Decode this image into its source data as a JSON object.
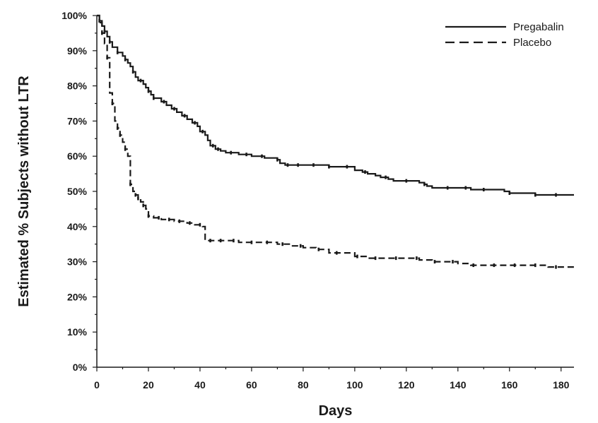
{
  "chart_data": {
    "type": "line",
    "title": "",
    "xlabel": "Days",
    "ylabel": "Estimated % Subjects without LTR",
    "xlim": [
      0,
      185
    ],
    "ylim": [
      0,
      100
    ],
    "x_ticks": [
      0,
      20,
      40,
      60,
      80,
      100,
      120,
      140,
      160,
      180
    ],
    "y_ticks": [
      0,
      10,
      20,
      30,
      40,
      50,
      60,
      70,
      80,
      90,
      100
    ],
    "x_tick_labels": [
      "0",
      "20",
      "40",
      "60",
      "80",
      "100",
      "120",
      "140",
      "160",
      "180"
    ],
    "y_tick_labels": [
      "0%",
      "10%",
      "20%",
      "30%",
      "40%",
      "50%",
      "60%",
      "70%",
      "80%",
      "90%",
      "100%"
    ],
    "grid": false,
    "legend_position": "top-right",
    "series": [
      {
        "name": "Pregabalin",
        "style": "solid",
        "x": [
          0,
          1,
          2,
          3,
          4,
          5,
          6,
          8,
          10,
          11,
          12,
          13,
          14,
          15,
          16,
          18,
          19,
          20,
          21,
          22,
          25,
          27,
          29,
          31,
          33,
          35,
          37,
          39,
          40,
          42,
          43,
          44,
          46,
          48,
          50,
          55,
          60,
          65,
          70,
          71,
          73,
          75,
          80,
          85,
          90,
          95,
          100,
          103,
          105,
          108,
          110,
          113,
          115,
          120,
          125,
          127,
          128,
          130,
          135,
          140,
          145,
          150,
          155,
          158,
          160,
          163,
          165,
          170,
          175,
          185
        ],
        "y": [
          100,
          98.5,
          97,
          95.5,
          94,
          92.5,
          91,
          89.5,
          88.5,
          87.5,
          86.5,
          85.5,
          84,
          82.5,
          81.5,
          80.5,
          79.5,
          78.5,
          77.5,
          76.5,
          75.5,
          74.5,
          73.5,
          72.5,
          71.5,
          70.5,
          69.5,
          68.5,
          67,
          66,
          64.5,
          63,
          62,
          61.5,
          61,
          60.5,
          60,
          59.5,
          59,
          58,
          57.5,
          57.5,
          57.5,
          57.5,
          57,
          57,
          56,
          55.5,
          55,
          54.5,
          54,
          53.5,
          53,
          53,
          52.5,
          52,
          51.5,
          51,
          51,
          51,
          50.5,
          50.5,
          50.5,
          50,
          49.5,
          49.5,
          49.5,
          49,
          49,
          49
        ],
        "censor_x": [
          1,
          3,
          5,
          8,
          11,
          14,
          17,
          20,
          22,
          26,
          30,
          34,
          38,
          41,
          45,
          47,
          52,
          58,
          64,
          70,
          74,
          78,
          84,
          90,
          97,
          104,
          112,
          120,
          127,
          136,
          143,
          150,
          160,
          170,
          178
        ]
      },
      {
        "name": "Placebo",
        "style": "dashed",
        "x": [
          0,
          1,
          2,
          3,
          4,
          5,
          6,
          7,
          8,
          9,
          10,
          11,
          12,
          13,
          14,
          15,
          16,
          17,
          18,
          19,
          20,
          22,
          25,
          30,
          35,
          38,
          41,
          42,
          45,
          50,
          55,
          60,
          65,
          70,
          75,
          80,
          85,
          90,
          95,
          100,
          105,
          110,
          115,
          120,
          125,
          130,
          135,
          140,
          145,
          150,
          155,
          160,
          165,
          170,
          175,
          180,
          185
        ],
        "y": [
          100,
          98,
          95,
          92,
          88,
          78,
          75,
          70,
          68,
          66,
          64,
          62,
          60,
          52,
          50,
          49,
          48,
          47,
          46,
          45,
          43,
          42.5,
          42,
          41.5,
          41,
          40.5,
          40,
          36,
          36,
          36,
          35.5,
          35.5,
          35.5,
          35,
          34.5,
          34,
          33.5,
          32.5,
          32.5,
          31.5,
          31,
          31,
          31,
          31,
          30.5,
          30,
          30,
          29.5,
          29,
          29,
          29,
          29,
          29,
          29,
          28.5,
          28.5,
          28
        ],
        "censor_x": [
          2,
          4,
          6,
          8,
          9,
          11,
          13,
          15,
          16,
          18,
          20,
          24,
          28,
          32,
          36,
          40,
          44,
          48,
          53,
          60,
          66,
          72,
          79,
          86,
          93,
          101,
          108,
          116,
          124,
          131,
          138,
          146,
          154,
          162,
          170,
          178
        ]
      }
    ]
  }
}
